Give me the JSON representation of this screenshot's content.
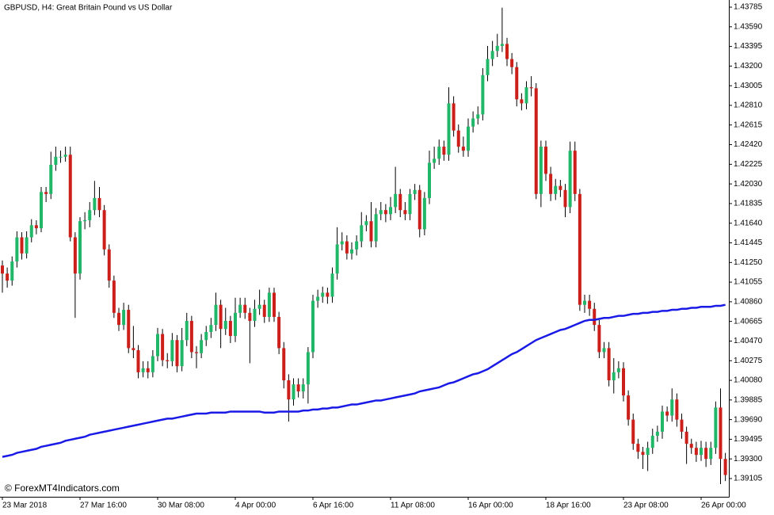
{
  "chart_data": {
    "type": "candlestick",
    "title": "GBPUSD, H4:  Great Britain Pound vs US Dollar",
    "watermark": "© ForexMT4Indicators.com",
    "categories": [
      "23 Mar 2018",
      null,
      null,
      null,
      null,
      null,
      null,
      null,
      null,
      null,
      null,
      null,
      null,
      null,
      null,
      null,
      "27 Mar 16:00",
      null,
      null,
      null,
      null,
      null,
      null,
      null,
      null,
      null,
      null,
      null,
      null,
      null,
      null,
      null,
      "30 Mar 08:00",
      null,
      null,
      null,
      null,
      null,
      null,
      null,
      null,
      null,
      null,
      null,
      null,
      null,
      null,
      null,
      "4 Apr 00:00",
      null,
      null,
      null,
      null,
      null,
      null,
      null,
      null,
      null,
      null,
      null,
      null,
      null,
      null,
      null,
      "6 Apr 16:00",
      null,
      null,
      null,
      null,
      null,
      null,
      null,
      null,
      null,
      null,
      null,
      null,
      null,
      null,
      null,
      "11 Apr 08:00",
      null,
      null,
      null,
      null,
      null,
      null,
      null,
      null,
      null,
      null,
      null,
      null,
      null,
      null,
      null,
      "16 Apr 00:00",
      null,
      null,
      null,
      null,
      null,
      null,
      null,
      null,
      null,
      null,
      null,
      null,
      null,
      null,
      null,
      "18 Apr 16:00",
      null,
      null,
      null,
      null,
      null,
      null,
      null,
      null,
      null,
      null,
      null,
      null,
      null,
      null,
      null,
      "23 Apr 08:00",
      null,
      null,
      null,
      null,
      null,
      null,
      null,
      null,
      null,
      null,
      null,
      null,
      null,
      null,
      null,
      "26 Apr 00:00",
      null,
      null,
      null,
      null,
      null
    ],
    "open": [
      1.4122,
      1.4114,
      1.4107,
      1.4126,
      1.415,
      1.4134,
      1.415,
      1.4162,
      1.4159,
      1.4195,
      1.4193,
      1.4222,
      1.423,
      1.423,
      1.4232,
      1.415,
      1.4114,
      1.4166,
      1.4167,
      1.4177,
      1.4189,
      1.4177,
      1.4138,
      1.4107,
      1.4075,
      1.4063,
      1.4078,
      1.404,
      1.4038,
      1.4016,
      1.402,
      1.4016,
      1.4032,
      1.4054,
      1.4028,
      1.4027,
      1.4048,
      1.4022,
      1.4048,
      1.4067,
      1.4036,
      1.4035,
      1.4048,
      1.4056,
      1.4063,
      1.4083,
      1.4059,
      1.4067,
      1.4052,
      1.4075,
      1.4083,
      1.4075,
      1.4067,
      1.4079,
      1.4083,
      1.4071,
      1.4095,
      1.4071,
      1.404,
      1.4008,
      1.3989,
      1.4004,
      1.3997,
      1.4004,
      1.4036,
      1.4087,
      1.4091,
      1.4095,
      1.4091,
      1.4114,
      1.4143,
      1.4146,
      1.4134,
      1.4138,
      1.4146,
      1.4162,
      1.4166,
      1.4146,
      1.4173,
      1.4177,
      1.4173,
      1.418,
      1.4193,
      1.4177,
      1.4173,
      1.4193,
      1.4197,
      1.4158,
      1.4189,
      1.4224,
      1.4228,
      1.424,
      1.4232,
      1.4283,
      1.4256,
      1.424,
      1.4236,
      1.426,
      1.4268,
      1.4272,
      1.4311,
      1.4327,
      1.4335,
      1.434,
      1.4342,
      1.4327,
      1.4319,
      1.4287,
      1.4283,
      1.4299,
      1.4298,
      1.4193,
      1.424,
      1.4213,
      1.4193,
      1.4201,
      1.4197,
      1.418,
      1.4236,
      1.4193,
      1.4083,
      1.4087,
      1.4079,
      1.4063,
      1.4036,
      1.404,
      1.4008,
      1.4016,
      1.402,
      1.3993,
      1.3969,
      1.3945,
      1.3937,
      1.3934,
      1.3941,
      1.3953,
      1.3957,
      1.3977,
      1.3973,
      1.3989,
      1.3969,
      1.3957,
      1.3945,
      1.3941,
      1.3934,
      1.3941,
      1.393,
      1.3941,
      1.3981,
      1.393
    ],
    "high": [
      1.4127,
      1.412,
      1.4131,
      1.4156,
      1.4155,
      1.4156,
      1.4168,
      1.4167,
      1.42,
      1.42,
      1.4235,
      1.424,
      1.4236,
      1.424,
      1.424,
      1.4155,
      1.417,
      1.4175,
      1.4185,
      1.4206,
      1.42,
      1.4182,
      1.4143,
      1.4112,
      1.408,
      1.4085,
      1.4083,
      1.4062,
      1.4043,
      1.4027,
      1.4027,
      1.4038,
      1.406,
      1.4059,
      1.4035,
      1.4055,
      1.4053,
      1.406,
      1.4075,
      1.4072,
      1.4042,
      1.4054,
      1.4062,
      1.407,
      1.4095,
      1.4088,
      1.408,
      1.4072,
      1.409,
      1.409,
      1.409,
      1.408,
      1.4088,
      1.4098,
      1.4088,
      1.41,
      1.41,
      1.4076,
      1.4046,
      1.4014,
      1.401,
      1.401,
      1.401,
      1.4041,
      1.4093,
      1.4098,
      1.4101,
      1.41,
      1.412,
      1.416,
      1.4155,
      1.4152,
      1.4145,
      1.4152,
      1.4175,
      1.4172,
      1.4185,
      1.4179,
      1.4185,
      1.4183,
      1.419,
      1.422,
      1.4198,
      1.4185,
      1.4198,
      1.4203,
      1.4202,
      1.4195,
      1.4236,
      1.424,
      1.4247,
      1.4246,
      1.4299,
      1.429,
      1.4262,
      1.425,
      1.4268,
      1.4275,
      1.428,
      1.4318,
      1.434,
      1.4345,
      1.4352,
      1.4378,
      1.4348,
      1.4333,
      1.4324,
      1.4293,
      1.4305,
      1.431,
      1.4303,
      1.4246,
      1.4246,
      1.422,
      1.4208,
      1.4207,
      1.4203,
      1.4245,
      1.4245,
      1.4198,
      1.4093,
      1.4093,
      1.4085,
      1.4068,
      1.4046,
      1.4046,
      1.403,
      1.4027,
      1.4026,
      1.3998,
      1.3975,
      1.395,
      1.3942,
      1.3947,
      1.396,
      1.3963,
      1.3983,
      1.3982,
      1.4,
      1.3995,
      1.3975,
      1.3962,
      1.395,
      1.3947,
      1.3948,
      1.3947,
      1.3947,
      1.3987,
      1.4,
      1.3936
    ],
    "low": [
      1.4095,
      1.41,
      1.4102,
      1.412,
      1.4128,
      1.4129,
      1.4145,
      1.4153,
      1.4155,
      1.4185,
      1.4188,
      1.4216,
      1.4224,
      1.4225,
      1.4146,
      1.407,
      1.4108,
      1.4158,
      1.416,
      1.4172,
      1.417,
      1.4132,
      1.41,
      1.407,
      1.4057,
      1.4058,
      1.4035,
      1.403,
      1.401,
      1.4011,
      1.401,
      1.4011,
      1.4027,
      1.4022,
      1.402,
      1.4022,
      1.4016,
      1.4017,
      1.4042,
      1.403,
      1.402,
      1.403,
      1.4042,
      1.405,
      1.4057,
      1.404,
      1.4053,
      1.4045,
      1.4046,
      1.407,
      1.4069,
      1.4025,
      1.4061,
      1.4073,
      1.4065,
      1.4066,
      1.4066,
      1.4034,
      1.4,
      1.3967,
      1.3983,
      1.3991,
      1.399,
      1.3985,
      1.403,
      1.408,
      1.4085,
      1.4084,
      1.4085,
      1.4108,
      1.4137,
      1.4128,
      1.4128,
      1.4132,
      1.414,
      1.4156,
      1.414,
      1.414,
      1.4167,
      1.4165,
      1.4167,
      1.4174,
      1.417,
      1.4167,
      1.4167,
      1.4187,
      1.415,
      1.4152,
      1.4183,
      1.4218,
      1.4222,
      1.4226,
      1.4226,
      1.425,
      1.4234,
      1.423,
      1.423,
      1.4254,
      1.4262,
      1.4266,
      1.4305,
      1.432,
      1.4329,
      1.4334,
      1.432,
      1.4312,
      1.428,
      1.4276,
      1.4277,
      1.429,
      1.4188,
      1.418,
      1.4206,
      1.4186,
      1.4187,
      1.419,
      1.417,
      1.4174,
      1.4186,
      1.4077,
      1.4075,
      1.4072,
      1.4057,
      1.403,
      1.403,
      1.4002,
      1.3995,
      1.401,
      1.3987,
      1.3963,
      1.3939,
      1.393,
      1.392,
      1.3918,
      1.3935,
      1.3947,
      1.395,
      1.3967,
      1.3967,
      1.3962,
      1.395,
      1.3925,
      1.3935,
      1.3927,
      1.3928,
      1.3922,
      1.3924,
      1.3935,
      1.3905,
      1.3908
    ],
    "close": [
      1.4114,
      1.4107,
      1.4126,
      1.415,
      1.4134,
      1.415,
      1.4162,
      1.4159,
      1.4195,
      1.4193,
      1.4222,
      1.423,
      1.423,
      1.4232,
      1.415,
      1.4114,
      1.4166,
      1.4167,
      1.4177,
      1.4189,
      1.4177,
      1.4138,
      1.4107,
      1.4075,
      1.4063,
      1.4078,
      1.404,
      1.4038,
      1.4016,
      1.402,
      1.4016,
      1.4032,
      1.4054,
      1.4028,
      1.4027,
      1.4048,
      1.4022,
      1.4048,
      1.4067,
      1.4036,
      1.4035,
      1.4048,
      1.4056,
      1.4063,
      1.4083,
      1.4059,
      1.4067,
      1.4052,
      1.4075,
      1.4083,
      1.4075,
      1.4067,
      1.4079,
      1.4083,
      1.4071,
      1.4095,
      1.4071,
      1.404,
      1.4008,
      1.3989,
      1.4004,
      1.3997,
      1.4004,
      1.4036,
      1.4087,
      1.4091,
      1.4095,
      1.4091,
      1.4114,
      1.4143,
      1.4146,
      1.4134,
      1.4138,
      1.4146,
      1.4162,
      1.4166,
      1.4146,
      1.4173,
      1.4177,
      1.4173,
      1.418,
      1.4193,
      1.4177,
      1.4173,
      1.4193,
      1.4197,
      1.4158,
      1.4189,
      1.4224,
      1.4228,
      1.424,
      1.4232,
      1.4283,
      1.4256,
      1.424,
      1.4236,
      1.426,
      1.4268,
      1.4272,
      1.4311,
      1.4327,
      1.4335,
      1.434,
      1.4342,
      1.4327,
      1.4319,
      1.4287,
      1.4283,
      1.4299,
      1.4298,
      1.4193,
      1.424,
      1.4213,
      1.4193,
      1.4201,
      1.4197,
      1.418,
      1.4236,
      1.4193,
      1.4083,
      1.4087,
      1.4079,
      1.4063,
      1.4036,
      1.404,
      1.4008,
      1.4016,
      1.402,
      1.3993,
      1.3969,
      1.3945,
      1.3937,
      1.3934,
      1.3941,
      1.3953,
      1.3957,
      1.3977,
      1.3973,
      1.3989,
      1.3969,
      1.3957,
      1.3945,
      1.3941,
      1.3934,
      1.3941,
      1.393,
      1.3941,
      1.3981,
      1.393,
      1.3914
    ],
    "up_color": "#20b868",
    "down_color": "#cc1f1a",
    "wick_color": "#000000",
    "moving_average": {
      "color": "#1a1ae6",
      "values": [
        1.3932,
        1.3933,
        1.3934,
        1.3936,
        1.3937,
        1.3938,
        1.3939,
        1.394,
        1.3942,
        1.3943,
        1.3944,
        1.3945,
        1.3946,
        1.3948,
        1.3949,
        1.395,
        1.3951,
        1.3952,
        1.3954,
        1.3955,
        1.3956,
        1.3957,
        1.3958,
        1.3959,
        1.396,
        1.3961,
        1.3962,
        1.3963,
        1.3964,
        1.3965,
        1.3966,
        1.3967,
        1.3968,
        1.3969,
        1.397,
        1.397,
        1.3971,
        1.3972,
        1.3973,
        1.3974,
        1.3975,
        1.3975,
        1.3975,
        1.3976,
        1.3976,
        1.3976,
        1.3976,
        1.3977,
        1.3977,
        1.3977,
        1.3977,
        1.3977,
        1.3977,
        1.3977,
        1.3976,
        1.3976,
        1.3976,
        1.3977,
        1.3977,
        1.3977,
        1.3977,
        1.3977,
        1.3978,
        1.3978,
        1.3979,
        1.3979,
        1.398,
        1.398,
        1.3981,
        1.3981,
        1.3982,
        1.3983,
        1.3984,
        1.3984,
        1.3985,
        1.3986,
        1.3987,
        1.3988,
        1.3988,
        1.3989,
        1.399,
        1.3991,
        1.3992,
        1.3993,
        1.3994,
        1.3995,
        1.3997,
        1.3998,
        1.3999,
        1.4,
        1.4001,
        1.4003,
        1.4005,
        1.4006,
        1.4008,
        1.401,
        1.4012,
        1.4014,
        1.4015,
        1.4017,
        1.4019,
        1.4022,
        1.4025,
        1.4028,
        1.4031,
        1.4034,
        1.4036,
        1.4039,
        1.4042,
        1.4045,
        1.4048,
        1.405,
        1.4052,
        1.4054,
        1.4056,
        1.4058,
        1.4059,
        1.4061,
        1.4063,
        1.4065,
        1.4067,
        1.4068,
        1.4068,
        1.4069,
        1.407,
        1.407,
        1.4071,
        1.4072,
        1.4072,
        1.4073,
        1.4074,
        1.4074,
        1.4075,
        1.4075,
        1.4076,
        1.4076,
        1.4077,
        1.4077,
        1.4078,
        1.4078,
        1.4079,
        1.4079,
        1.408,
        1.408,
        1.4081,
        1.4081,
        1.4081,
        1.4082,
        1.4082,
        1.4083
      ]
    },
    "ylim": [
      1.38924,
      1.43856
    ],
    "yticks": [
      1.43785,
      {
        "value": 1.4359,
        "label": "1.43590"
      },
      1.43395,
      {
        "value": 1.432,
        "label": "1.43200"
      },
      1.43005,
      {
        "value": 1.4281,
        "label": "1.42810"
      },
      1.42615,
      {
        "value": 1.4242,
        "label": "1.42420"
      },
      1.42225,
      {
        "value": 1.4203,
        "label": "1.42030"
      },
      1.41835,
      {
        "value": 1.4164,
        "label": "1.41640"
      },
      1.41445,
      {
        "value": 1.4125,
        "label": "1.41250"
      },
      1.41055,
      {
        "value": 1.4086,
        "label": "1.40860"
      },
      1.40665,
      {
        "value": 1.4047,
        "label": "1.40470"
      },
      1.40275,
      {
        "value": 1.4008,
        "label": "1.40080"
      },
      1.39885,
      {
        "value": 1.3969,
        "label": "1.39690"
      },
      1.39495,
      {
        "value": 1.393,
        "label": "1.39300"
      },
      1.39105
    ]
  }
}
